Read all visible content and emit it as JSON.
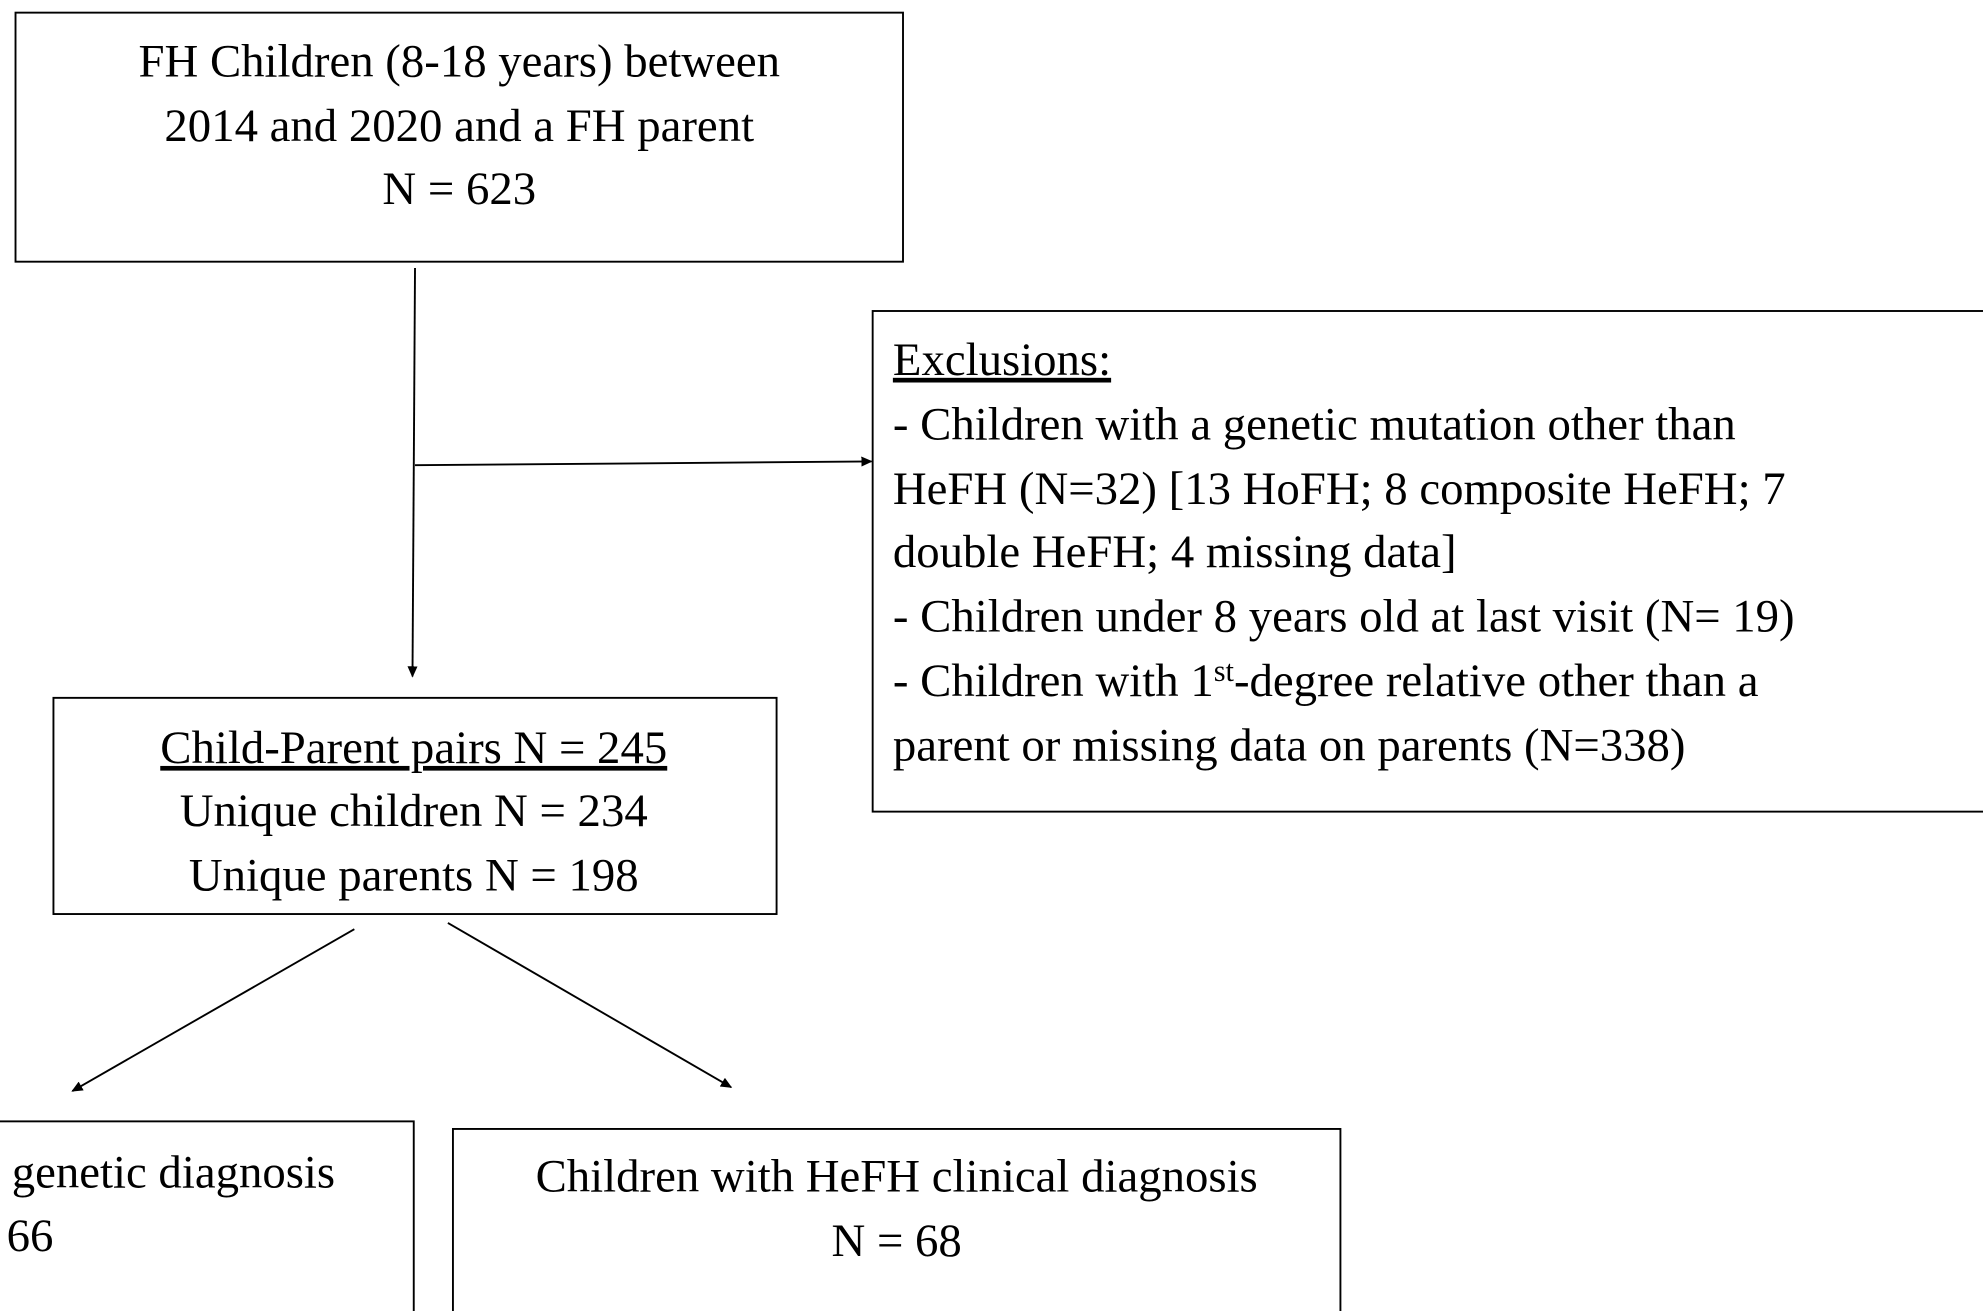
{
  "nodes": [
    {
      "lines": [
        "FH Children (8-18 years) between",
        "2014 and 2020 and a FH parent",
        "N = 623"
      ]
    },
    {
      "heading": "Exclusions:",
      "lines": [
        "- Children with a genetic mutation other than",
        "HeFH (N=32) [13 HoFH; 8 composite HeFH; 7",
        "double HeFH; 4 missing data]",
        "- Children under 8 years old at last visit (N= 19)",
        {
          "text": "- Children with 1",
          "sup": "st",
          "rest": "-degree relative other than a"
        },
        "parent or missing data on parents (N=338)"
      ]
    },
    {
      "heading": "Child-Parent pairs N = 245",
      "lines": [
        "Unique children N = 234",
        "Unique parents N = 198"
      ]
    },
    {
      "lines": [
        "genetic diagnosis",
        "66"
      ]
    },
    {
      "lines": [
        "Children with HeFH clinical diagnosis",
        "N = 68"
      ]
    }
  ]
}
